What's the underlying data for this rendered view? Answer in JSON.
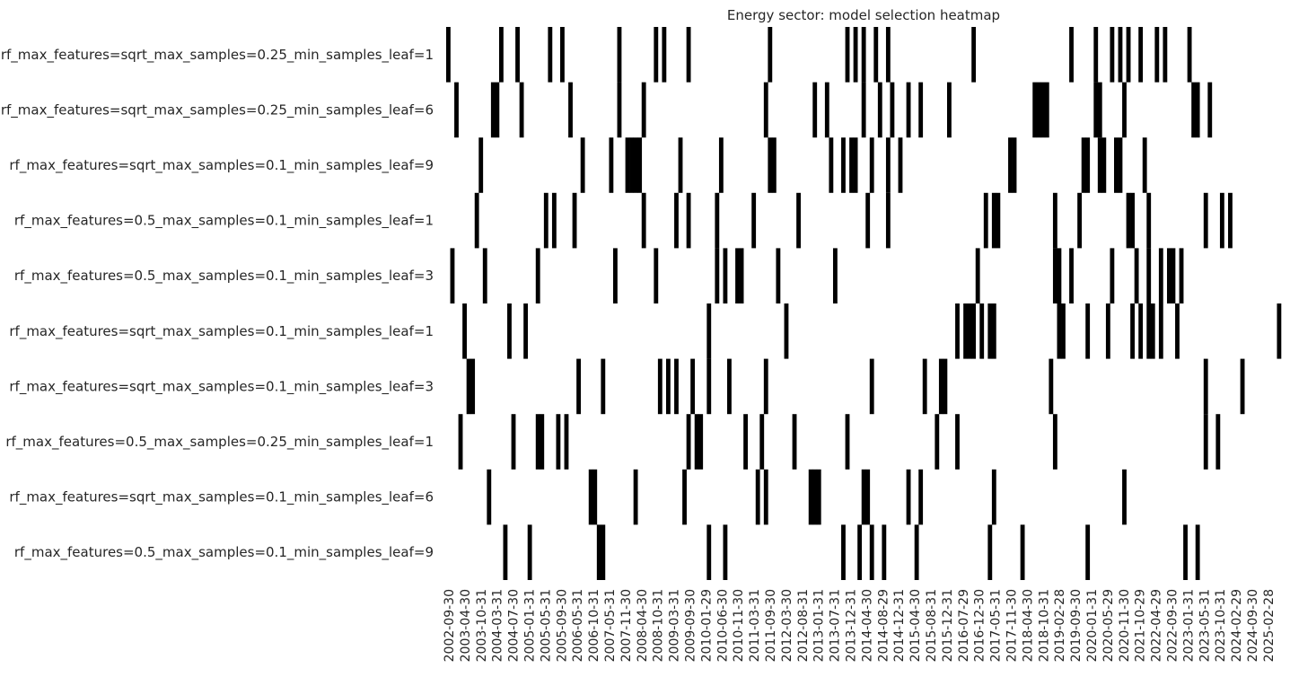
{
  "chart_data": {
    "type": "heatmap",
    "title": "Energy sector: model selection heatmap",
    "colors": {
      "selected": "#000000",
      "not_selected": "#ffffff",
      "text": "#262626"
    },
    "rows": [
      "rf_max_features=sqrt_max_samples=0.25_min_samples_leaf=1",
      "rf_max_features=sqrt_max_samples=0.25_min_samples_leaf=6",
      "rf_max_features=sqrt_max_samples=0.1_min_samples_leaf=9",
      "rf_max_features=0.5_max_samples=0.1_min_samples_leaf=1",
      "rf_max_features=0.5_max_samples=0.1_min_samples_leaf=3",
      "rf_max_features=sqrt_max_samples=0.1_min_samples_leaf=1",
      "rf_max_features=sqrt_max_samples=0.1_min_samples_leaf=3",
      "rf_max_features=0.5_max_samples=0.25_min_samples_leaf=1",
      "rf_max_features=sqrt_max_samples=0.1_min_samples_leaf=6",
      "rf_max_features=0.5_max_samples=0.1_min_samples_leaf=9"
    ],
    "x_tick_labels": [
      "2002-09-30",
      "2003-04-30",
      "2003-10-31",
      "2004-03-31",
      "2004-07-30",
      "2005-01-31",
      "2005-05-31",
      "2005-09-30",
      "2006-05-31",
      "2006-10-31",
      "2007-05-31",
      "2007-11-30",
      "2008-04-30",
      "2008-10-31",
      "2009-03-31",
      "2009-09-30",
      "2010-01-29",
      "2010-06-30",
      "2010-11-30",
      "2011-03-31",
      "2011-09-30",
      "2012-03-30",
      "2012-08-31",
      "2013-01-31",
      "2013-07-31",
      "2013-12-31",
      "2014-04-30",
      "2014-08-29",
      "2014-12-31",
      "2015-04-30",
      "2015-08-31",
      "2015-12-31",
      "2016-07-29",
      "2016-12-30",
      "2017-05-31",
      "2017-11-30",
      "2018-04-30",
      "2018-10-31",
      "2019-02-28",
      "2019-09-30",
      "2020-01-31",
      "2020-05-29",
      "2020-11-30",
      "2021-10-29",
      "2022-04-29",
      "2022-09-30",
      "2023-01-31",
      "2023-05-31",
      "2023-10-31",
      "2024-02-29",
      "2024-09-30",
      "2025-02-28"
    ],
    "n_columns": 205,
    "selected_columns_by_row": [
      [
        0,
        13,
        17,
        25,
        28,
        42,
        51,
        53,
        59,
        79,
        98,
        100,
        102,
        105,
        108,
        129,
        153,
        159,
        163,
        165,
        167,
        170,
        174,
        176,
        182
      ],
      [
        2,
        11,
        12,
        18,
        30,
        42,
        48,
        78,
        90,
        93,
        102,
        106,
        109,
        113,
        116,
        123,
        144,
        145,
        146,
        147,
        159,
        160,
        166,
        183,
        184,
        187
      ],
      [
        8,
        33,
        40,
        44,
        45,
        46,
        47,
        57,
        67,
        79,
        80,
        94,
        97,
        99,
        100,
        104,
        108,
        111,
        138,
        139,
        156,
        157,
        160,
        161,
        164,
        165,
        171
      ],
      [
        7,
        24,
        26,
        31,
        48,
        56,
        59,
        66,
        75,
        86,
        103,
        108,
        132,
        134,
        135,
        149,
        155,
        167,
        168,
        172,
        186,
        190,
        192
      ],
      [
        1,
        9,
        22,
        41,
        51,
        66,
        68,
        71,
        72,
        81,
        95,
        130,
        149,
        150,
        153,
        163,
        169,
        172,
        175,
        177,
        178,
        180
      ],
      [
        4,
        15,
        19,
        64,
        83,
        125,
        127,
        128,
        129,
        131,
        133,
        134,
        150,
        151,
        157,
        162,
        168,
        170,
        172,
        173,
        175,
        179,
        204
      ],
      [
        5,
        6,
        32,
        38,
        52,
        54,
        56,
        60,
        64,
        69,
        78,
        104,
        117,
        121,
        122,
        148,
        186,
        195
      ],
      [
        3,
        16,
        22,
        23,
        27,
        29,
        59,
        61,
        62,
        73,
        77,
        85,
        98,
        120,
        125,
        149,
        186,
        189
      ],
      [
        10,
        35,
        36,
        46,
        58,
        76,
        78,
        89,
        90,
        91,
        102,
        103,
        113,
        116,
        134,
        166
      ],
      [
        14,
        20,
        37,
        38,
        64,
        68,
        97,
        101,
        104,
        107,
        115,
        133,
        141,
        157,
        181,
        184
      ]
    ]
  }
}
